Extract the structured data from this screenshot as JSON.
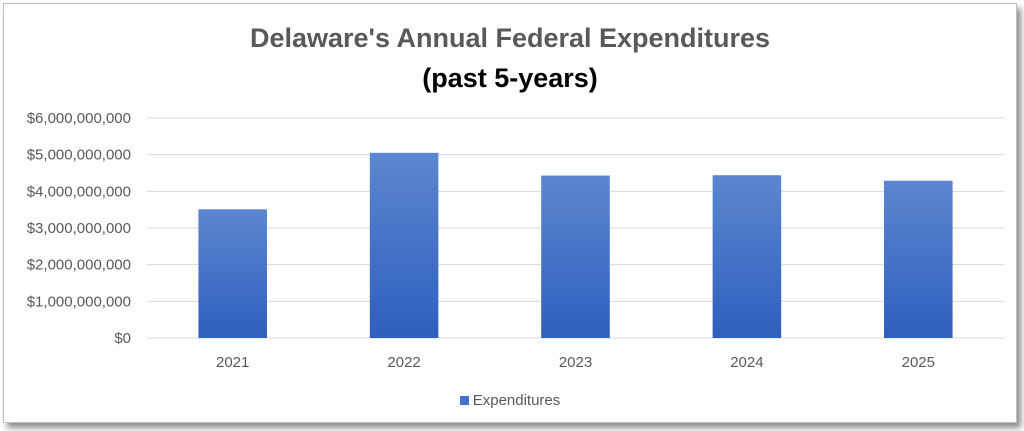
{
  "chart_data": {
    "type": "bar",
    "title": "Delaware's Annual Federal Expenditures",
    "subtitle": "(past 5-years)",
    "categories": [
      "2021",
      "2022",
      "2023",
      "2024",
      "2025"
    ],
    "series": [
      {
        "name": "Expenditures",
        "values": [
          3510000000,
          5050000000,
          4430000000,
          4440000000,
          4290000000
        ]
      }
    ],
    "ylim": [
      0,
      6000000000
    ],
    "yticks": [
      0,
      1000000000,
      2000000000,
      3000000000,
      4000000000,
      5000000000,
      6000000000
    ],
    "ytick_labels": [
      "$0",
      "$1,000,000,000",
      "$2,000,000,000",
      "$3,000,000,000",
      "$4,000,000,000",
      "$5,000,000,000",
      "$6,000,000,000"
    ],
    "xlabel": "",
    "ylabel": "",
    "grid": true,
    "legend_position": "bottom",
    "colors": {
      "bar_top": "#5b86d0",
      "bar_bottom": "#2f5fbd",
      "grid": "#d9d9d9",
      "text": "#595959"
    }
  }
}
